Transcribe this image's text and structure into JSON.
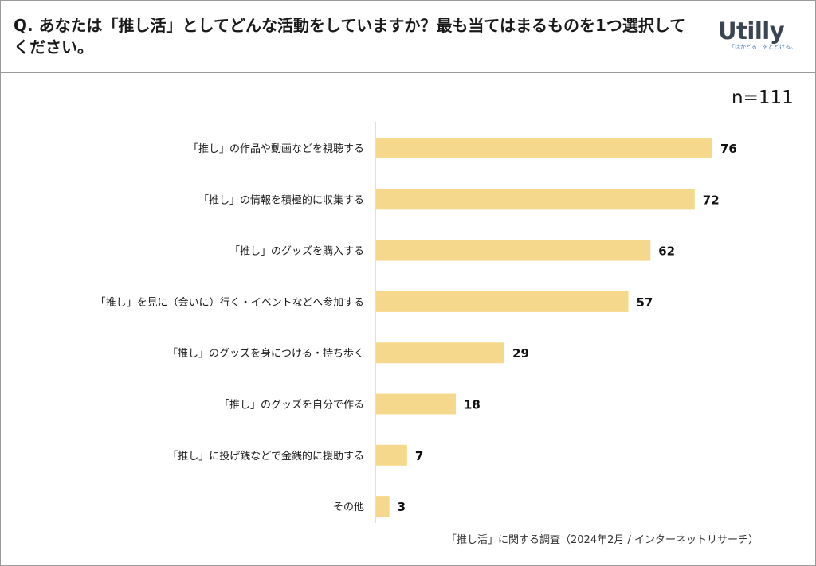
{
  "header": {
    "question": "Q. あなたは「推し活」としてどんな活動をしていますか？最も当てはまるものを1つ選択してください。",
    "brand": "Utilly",
    "brand_tagline": "「はかどる」をとどける。"
  },
  "sample": "n=111",
  "source": "「推し活」に関する調査（2024年2月 / インターネットリサーチ）",
  "colors": {
    "bar": "#f6d88c",
    "axis": "#bfbfbf",
    "label": "#1a1a1a"
  },
  "chart_data": {
    "type": "bar",
    "orientation": "horizontal",
    "categories": [
      "「推し」の作品や動画などを視聴する",
      "「推し」の情報を積極的に収集する",
      "「推し」のグッズを購入する",
      "「推し」を見に（会いに）行く・イベントなどへ参加する",
      "「推し」のグッズを身につける・持ち歩く",
      "「推し」のグッズを自分で作る",
      "「推し」に投げ銭などで金銭的に援助する",
      "その他"
    ],
    "values": [
      76,
      72,
      62,
      57,
      29,
      18,
      7,
      3
    ],
    "grid": false,
    "legend": "none"
  }
}
